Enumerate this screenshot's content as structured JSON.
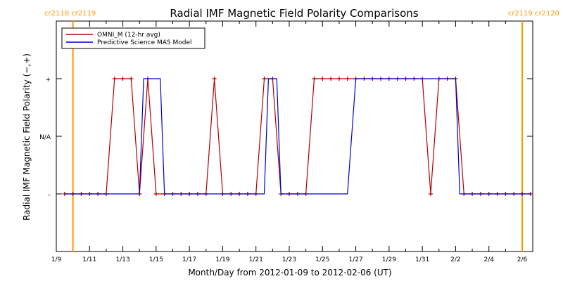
{
  "chart_data": {
    "type": "line",
    "title": "Radial IMF Magnetic Field Polarity Comparisons",
    "xlabel": "Month/Day from 2012-01-09 to 2012-02-06 (UT)",
    "ylabel": "Radial IMF Magnetic Field Polarity (−,+)",
    "x_tick_labels": [
      "1/9",
      "1/11",
      "1/13",
      "1/15",
      "1/17",
      "1/19",
      "1/21",
      "1/23",
      "1/25",
      "1/27",
      "1/29",
      "1/31",
      "2/2",
      "2/4",
      "2/6"
    ],
    "xlim": [
      "2012-01-09",
      "2012-02-06"
    ],
    "y_tick_labels": [
      "–",
      "N/A",
      "+"
    ],
    "y_tick_values": [
      -1,
      0,
      1
    ],
    "ylim": [
      -2,
      2
    ],
    "legend_position": "top-left",
    "carrington_markers": [
      {
        "x": "2012-01-10",
        "label": "cr2118 cr2119"
      },
      {
        "x": "2012-02-06",
        "label": "cr2119 cr2120"
      }
    ],
    "series": [
      {
        "name": "OMNI_M (12-hr avg)",
        "color": "#b20000",
        "marker": "+",
        "points": [
          [
            "2012-01-09 12:00",
            -1
          ],
          [
            "2012-01-10 00:00",
            -1
          ],
          [
            "2012-01-10 12:00",
            -1
          ],
          [
            "2012-01-11 00:00",
            -1
          ],
          [
            "2012-01-11 12:00",
            -1
          ],
          [
            "2012-01-12 00:00",
            -1
          ],
          [
            "2012-01-12 12:00",
            1
          ],
          [
            "2012-01-13 00:00",
            1
          ],
          [
            "2012-01-13 12:00",
            1
          ],
          [
            "2012-01-14 00:00",
            -1
          ],
          [
            "2012-01-14 12:00",
            1
          ],
          [
            "2012-01-15 00:00",
            -1
          ],
          [
            "2012-01-15 12:00",
            -1
          ],
          [
            "2012-01-16 00:00",
            -1
          ],
          [
            "2012-01-16 12:00",
            -1
          ],
          [
            "2012-01-17 00:00",
            -1
          ],
          [
            "2012-01-17 12:00",
            -1
          ],
          [
            "2012-01-18 00:00",
            -1
          ],
          [
            "2012-01-18 12:00",
            1
          ],
          [
            "2012-01-19 00:00",
            -1
          ],
          [
            "2012-01-19 12:00",
            -1
          ],
          [
            "2012-01-20 00:00",
            -1
          ],
          [
            "2012-01-20 12:00",
            -1
          ],
          [
            "2012-01-21 00:00",
            -1
          ],
          [
            "2012-01-21 12:00",
            1
          ],
          [
            "2012-01-22 00:00",
            1
          ],
          [
            "2012-01-22 12:00",
            -1
          ],
          [
            "2012-01-23 00:00",
            -1
          ],
          [
            "2012-01-23 12:00",
            -1
          ],
          [
            "2012-01-24 00:00",
            -1
          ],
          [
            "2012-01-24 12:00",
            1
          ],
          [
            "2012-01-25 00:00",
            1
          ],
          [
            "2012-01-25 12:00",
            1
          ],
          [
            "2012-01-26 00:00",
            1
          ],
          [
            "2012-01-26 12:00",
            1
          ],
          [
            "2012-01-27 00:00",
            1
          ],
          [
            "2012-01-27 12:00",
            1
          ],
          [
            "2012-01-28 00:00",
            1
          ],
          [
            "2012-01-28 12:00",
            1
          ],
          [
            "2012-01-29 00:00",
            1
          ],
          [
            "2012-01-29 12:00",
            1
          ],
          [
            "2012-01-30 00:00",
            1
          ],
          [
            "2012-01-30 12:00",
            1
          ],
          [
            "2012-01-31 00:00",
            1
          ],
          [
            "2012-01-31 12:00",
            -1
          ],
          [
            "2012-02-01 00:00",
            1
          ],
          [
            "2012-02-01 12:00",
            1
          ],
          [
            "2012-02-02 00:00",
            1
          ],
          [
            "2012-02-02 12:00",
            -1
          ],
          [
            "2012-02-03 00:00",
            -1
          ],
          [
            "2012-02-03 12:00",
            -1
          ],
          [
            "2012-02-04 00:00",
            -1
          ],
          [
            "2012-02-04 12:00",
            -1
          ],
          [
            "2012-02-05 00:00",
            -1
          ],
          [
            "2012-02-05 12:00",
            -1
          ],
          [
            "2012-02-06 00:00",
            -1
          ],
          [
            "2012-02-06 12:00",
            -1
          ]
        ]
      },
      {
        "name": "Predictive Science MAS Model",
        "color": "#0000cc",
        "marker": "none",
        "points": [
          [
            "2012-01-09 12:00",
            -1
          ],
          [
            "2012-01-14 00:00",
            -1
          ],
          [
            "2012-01-14 06:00",
            1
          ],
          [
            "2012-01-15 06:00",
            1
          ],
          [
            "2012-01-15 12:00",
            -1
          ],
          [
            "2012-01-21 12:00",
            -1
          ],
          [
            "2012-01-21 18:00",
            1
          ],
          [
            "2012-01-22 06:00",
            1
          ],
          [
            "2012-01-22 12:00",
            -1
          ],
          [
            "2012-01-26 12:00",
            -1
          ],
          [
            "2012-01-27 00:00",
            1
          ],
          [
            "2012-02-02 00:00",
            1
          ],
          [
            "2012-02-02 06:00",
            -1
          ],
          [
            "2012-02-06 12:00",
            -1
          ]
        ]
      }
    ]
  }
}
